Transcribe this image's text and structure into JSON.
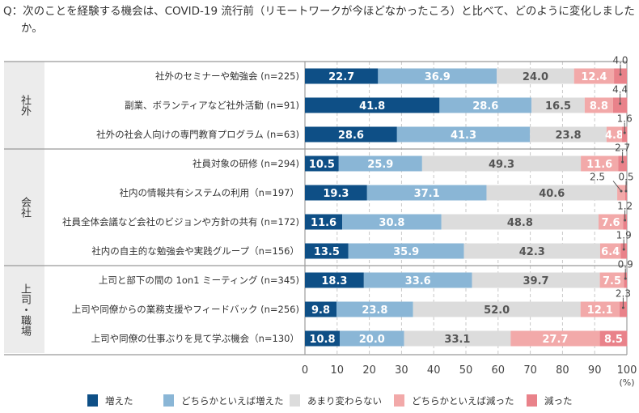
{
  "question": "Q：次のことを経験する機会は、COVID-19 流行前（リモートワークが今ほどなかったころ）と比べて、どのように変化しましたか。",
  "chart_data": {
    "type": "bar",
    "stacked": "horizontal-100%",
    "x_ticks": [
      "0",
      "10",
      "20",
      "30",
      "40",
      "50",
      "60",
      "70",
      "80",
      "90",
      "100"
    ],
    "x_unit": "(%)",
    "xlim": [
      0,
      100
    ],
    "grid": "vertical dashed",
    "legend_position": "bottom",
    "series": [
      {
        "name": "増えた",
        "color": "#0e4f86"
      },
      {
        "name": "どちらかといえば増えた",
        "color": "#8ab6d6"
      },
      {
        "name": "あまり変わらない",
        "color": "#dcdcdc"
      },
      {
        "name": "どちらかといえば減った",
        "color": "#f2a9a9"
      },
      {
        "name": "減った",
        "color": "#e9828a"
      }
    ],
    "groups": [
      {
        "label": "社外",
        "rows": [
          {
            "label": "社外のセミナーや勉強会 (n=225)",
            "values": [
              22.7,
              36.9,
              24.0,
              12.4,
              4.0
            ]
          },
          {
            "label": "副業、ボランティアなど社外活動 (n=91)",
            "values": [
              41.8,
              28.6,
              16.5,
              8.8,
              4.4
            ]
          },
          {
            "label": "社外の社会人向けの専門教育プログラム (n=63)",
            "values": [
              28.6,
              41.3,
              23.8,
              4.8,
              1.6
            ]
          }
        ]
      },
      {
        "label": "会社",
        "rows": [
          {
            "label": "社員対象の研修 (n=294)",
            "values": [
              10.5,
              25.9,
              49.3,
              11.6,
              2.7
            ]
          },
          {
            "label": "社内の情報共有システムの利用（n=197）",
            "values": [
              19.3,
              37.1,
              40.6,
              2.5,
              0.5
            ]
          },
          {
            "label": "社員全体会議など会社のビジョンや方針の共有 (n=172)",
            "values": [
              11.6,
              30.8,
              48.8,
              7.6,
              1.2
            ]
          },
          {
            "label": "社内の自主的な勉強会や実践グループ（n=156）",
            "values": [
              13.5,
              35.9,
              42.3,
              6.4,
              1.9
            ]
          }
        ]
      },
      {
        "label": "上司・職場",
        "rows": [
          {
            "label": "上司と部下の間の 1on1 ミーティング (n=345)",
            "values": [
              18.3,
              33.6,
              39.7,
              7.5,
              0.9
            ]
          },
          {
            "label": "上司や同僚からの業務支援やフィードバック (n=256)",
            "values": [
              9.8,
              23.8,
              52.0,
              12.1,
              2.3
            ]
          },
          {
            "label": "上司や同僚の仕事ぶりを見て学ぶ機会（n=130）",
            "values": [
              10.8,
              20.0,
              33.1,
              27.7,
              8.5
            ]
          }
        ]
      }
    ]
  }
}
